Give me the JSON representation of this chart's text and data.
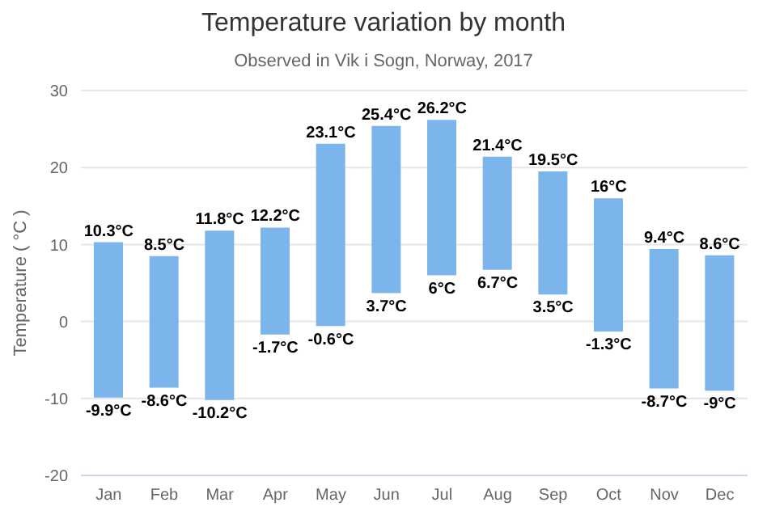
{
  "chart_data": {
    "type": "bar",
    "title": "Temperature variation by month",
    "subtitle": "Observed in Vik i Sogn, Norway, 2017",
    "ylabel": "Temperature ( °C )",
    "categories": [
      "Jan",
      "Feb",
      "Mar",
      "Apr",
      "May",
      "Jun",
      "Jul",
      "Aug",
      "Sep",
      "Oct",
      "Nov",
      "Dec"
    ],
    "base": [
      -9.9,
      -8.6,
      -10.2,
      -1.7,
      -0.6,
      3.7,
      6,
      6.7,
      3.5,
      -1.3,
      -8.7,
      -9
    ],
    "values": [
      20.2,
      17.1,
      22,
      13.9,
      23.7,
      21.7,
      20.2,
      14.7,
      16,
      17.3,
      18.1,
      17.6
    ],
    "color": "#7cb5ec",
    "ylim": [
      -20,
      30
    ],
    "yticks": [
      -20,
      -10,
      0,
      10,
      20,
      30
    ],
    "grid": "y",
    "annotations": [
      {
        "text": "10.3°C",
        "x": "Jan",
        "y": 10.3
      },
      {
        "text": "-9.9°C",
        "x": "Jan",
        "y": -9.9
      },
      {
        "text": "8.5°C",
        "x": "Feb",
        "y": 8.5
      },
      {
        "text": "-8.6°C",
        "x": "Feb",
        "y": -8.6
      },
      {
        "text": "11.8°C",
        "x": "Mar",
        "y": 11.8
      },
      {
        "text": "-10.2°C",
        "x": "Mar",
        "y": -10.2
      },
      {
        "text": "12.2°C",
        "x": "Apr",
        "y": 12.2
      },
      {
        "text": "-1.7°C",
        "x": "Apr",
        "y": -1.7
      },
      {
        "text": "23.1°C",
        "x": "May",
        "y": 23.1
      },
      {
        "text": "-0.6°C",
        "x": "May",
        "y": -0.6
      },
      {
        "text": "25.4°C",
        "x": "Jun",
        "y": 25.4
      },
      {
        "text": "3.7°C",
        "x": "Jun",
        "y": 3.7
      },
      {
        "text": "26.2°C",
        "x": "Jul",
        "y": 26.2
      },
      {
        "text": "6°C",
        "x": "Jul",
        "y": 6
      },
      {
        "text": "21.4°C",
        "x": "Aug",
        "y": 21.4
      },
      {
        "text": "6.7°C",
        "x": "Aug",
        "y": 6.7
      },
      {
        "text": "19.5°C",
        "x": "Sep",
        "y": 19.5
      },
      {
        "text": "3.5°C",
        "x": "Sep",
        "y": 3.5
      },
      {
        "text": "16°C",
        "x": "Oct",
        "y": 16
      },
      {
        "text": "-1.3°C",
        "x": "Oct",
        "y": -1.3
      },
      {
        "text": "9.4°C",
        "x": "Nov",
        "y": 9.4
      },
      {
        "text": "-8.7°C",
        "x": "Nov",
        "y": -8.7
      },
      {
        "text": "8.6°C",
        "x": "Dec",
        "y": 8.6
      },
      {
        "text": "-9°C",
        "x": "Dec",
        "y": -9
      }
    ]
  }
}
